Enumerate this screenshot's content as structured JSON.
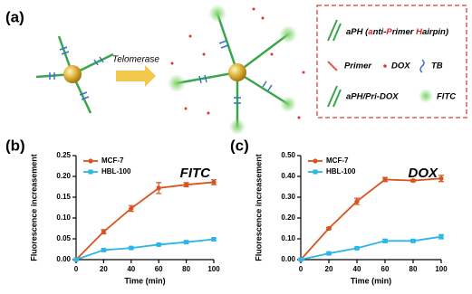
{
  "diagram": {
    "panel_label": "(a)",
    "arrow_label": "Telomerase",
    "legend": {
      "aph_parts": [
        "aPH (",
        "a",
        "nti-",
        "P",
        "rimer ",
        "H",
        "airpin)"
      ],
      "primer": "Primer",
      "dox": "DOX",
      "tb": "TB",
      "complex": "aPH/Pri-DOX",
      "fitc": "FITC"
    }
  },
  "chart_data": [
    {
      "type": "line",
      "label": "(b)",
      "annotation": "FITC",
      "x_label": "Time (min)",
      "y_label": "Fluorescence increasement",
      "x": [
        0,
        20,
        40,
        60,
        80,
        100
      ],
      "xlim": [
        0,
        100
      ],
      "xticks": [
        0,
        20,
        40,
        60,
        80,
        100
      ],
      "ylim": [
        0,
        0.25
      ],
      "yticks": [
        {
          "value": 0,
          "label": "0.00"
        },
        {
          "value": 0.05,
          "label": "0.05"
        },
        {
          "value": 0.1,
          "label": "0.10"
        },
        {
          "value": 0.15,
          "label": "0.15"
        },
        {
          "value": 0.2,
          "label": "0.20"
        },
        {
          "value": 0.25,
          "label": "0.25"
        }
      ],
      "series": [
        {
          "name": "MCF-7",
          "color": "#d9531e",
          "marker": "circle",
          "values": [
            0,
            0.067,
            0.123,
            0.172,
            0.18,
            0.186
          ],
          "errors": [
            0,
            0.005,
            0.007,
            0.013,
            0.005,
            0.006
          ]
        },
        {
          "name": "HBL-100",
          "color": "#2bb5e8",
          "marker": "square",
          "values": [
            0,
            0.023,
            0.028,
            0.036,
            0.042,
            0.049
          ],
          "errors": [
            0,
            0.002,
            0.002,
            0.002,
            0.003,
            0.003
          ]
        }
      ]
    },
    {
      "type": "line",
      "label": "(c)",
      "annotation": "DOX",
      "x_label": "Time (min)",
      "y_label": "Fluorescence increasement",
      "x": [
        0,
        20,
        40,
        60,
        80,
        100
      ],
      "xlim": [
        0,
        100
      ],
      "xticks": [
        0,
        20,
        40,
        60,
        80,
        100
      ],
      "ylim": [
        0,
        0.5
      ],
      "yticks": [
        {
          "value": 0,
          "label": "0.00"
        },
        {
          "value": 0.1,
          "label": "0.10"
        },
        {
          "value": 0.2,
          "label": "0.20"
        },
        {
          "value": 0.3,
          "label": "0.30"
        },
        {
          "value": 0.4,
          "label": "0.40"
        },
        {
          "value": 0.5,
          "label": "0.50"
        }
      ],
      "series": [
        {
          "name": "MCF-7",
          "color": "#d9531e",
          "marker": "circle",
          "values": [
            0,
            0.15,
            0.28,
            0.385,
            0.38,
            0.39
          ],
          "errors": [
            0,
            0.005,
            0.015,
            0.01,
            0.005,
            0.015
          ]
        },
        {
          "name": "HBL-100",
          "color": "#2bb5e8",
          "marker": "square",
          "values": [
            0,
            0.03,
            0.055,
            0.09,
            0.09,
            0.11
          ],
          "errors": [
            0,
            0.005,
            0.005,
            0.008,
            0.005,
            0.01
          ]
        }
      ]
    }
  ]
}
